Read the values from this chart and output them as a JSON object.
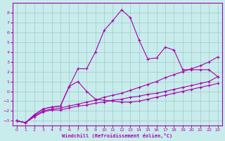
{
  "xlabel": "Windchill (Refroidissement éolien,°C)",
  "bg_color": "#c8ecec",
  "grid_color": "#9fc9c9",
  "line_color": "#aa00aa",
  "spine_color": "#aa00aa",
  "xlim": [
    -0.5,
    23.5
  ],
  "ylim": [
    -3.5,
    9.0
  ],
  "xticks": [
    0,
    1,
    2,
    3,
    4,
    5,
    6,
    7,
    8,
    9,
    10,
    11,
    12,
    13,
    14,
    15,
    16,
    17,
    18,
    19,
    20,
    21,
    22,
    23
  ],
  "yticks": [
    -3,
    -2,
    -1,
    0,
    1,
    2,
    3,
    4,
    5,
    6,
    7,
    8
  ],
  "line_jagged_x": [
    0,
    1,
    2,
    3,
    4,
    5,
    6,
    7,
    8,
    9,
    10,
    11,
    12,
    13,
    14,
    15,
    16,
    17,
    18,
    19,
    20,
    21,
    22,
    23
  ],
  "line_jagged_y": [
    -3.0,
    -3.2,
    -2.4,
    -1.8,
    -1.6,
    -1.5,
    0.5,
    2.3,
    2.3,
    4.0,
    6.2,
    7.2,
    8.3,
    7.5,
    5.2,
    3.3,
    3.4,
    4.5,
    4.2,
    2.2,
    2.2,
    2.2,
    2.2,
    1.5
  ],
  "line_hump_x": [
    0,
    1,
    2,
    3,
    4,
    5,
    6,
    7,
    8,
    9,
    10,
    11,
    12,
    13,
    14,
    15,
    16,
    17,
    18,
    19,
    20,
    21,
    22,
    23
  ],
  "line_hump_y": [
    -3.0,
    -3.2,
    -2.4,
    -1.8,
    -1.6,
    -1.5,
    0.5,
    1.0,
    0.0,
    -0.8,
    -0.9,
    -1.0,
    -1.1,
    -1.1,
    -1.0,
    -0.8,
    -0.6,
    -0.4,
    -0.2,
    0.0,
    0.2,
    0.4,
    0.6,
    0.8
  ],
  "line_upper_x": [
    0,
    1,
    2,
    3,
    4,
    5,
    6,
    7,
    8,
    9,
    10,
    11,
    12,
    13,
    14,
    15,
    16,
    17,
    18,
    19,
    20,
    21,
    22,
    23
  ],
  "line_upper_y": [
    -3.0,
    -3.2,
    -2.5,
    -2.0,
    -1.8,
    -1.7,
    -1.5,
    -1.3,
    -1.1,
    -0.9,
    -0.6,
    -0.4,
    -0.2,
    0.1,
    0.4,
    0.7,
    1.0,
    1.4,
    1.7,
    2.0,
    2.3,
    2.6,
    3.0,
    3.5
  ],
  "line_lower_x": [
    0,
    1,
    2,
    3,
    4,
    5,
    6,
    7,
    8,
    9,
    10,
    11,
    12,
    13,
    14,
    15,
    16,
    17,
    18,
    19,
    20,
    21,
    22,
    23
  ],
  "line_lower_y": [
    -3.0,
    -3.2,
    -2.6,
    -2.1,
    -1.9,
    -1.9,
    -1.7,
    -1.5,
    -1.4,
    -1.2,
    -1.1,
    -0.9,
    -0.8,
    -0.6,
    -0.5,
    -0.3,
    -0.2,
    0.0,
    0.2,
    0.4,
    0.6,
    0.8,
    1.0,
    1.5
  ]
}
